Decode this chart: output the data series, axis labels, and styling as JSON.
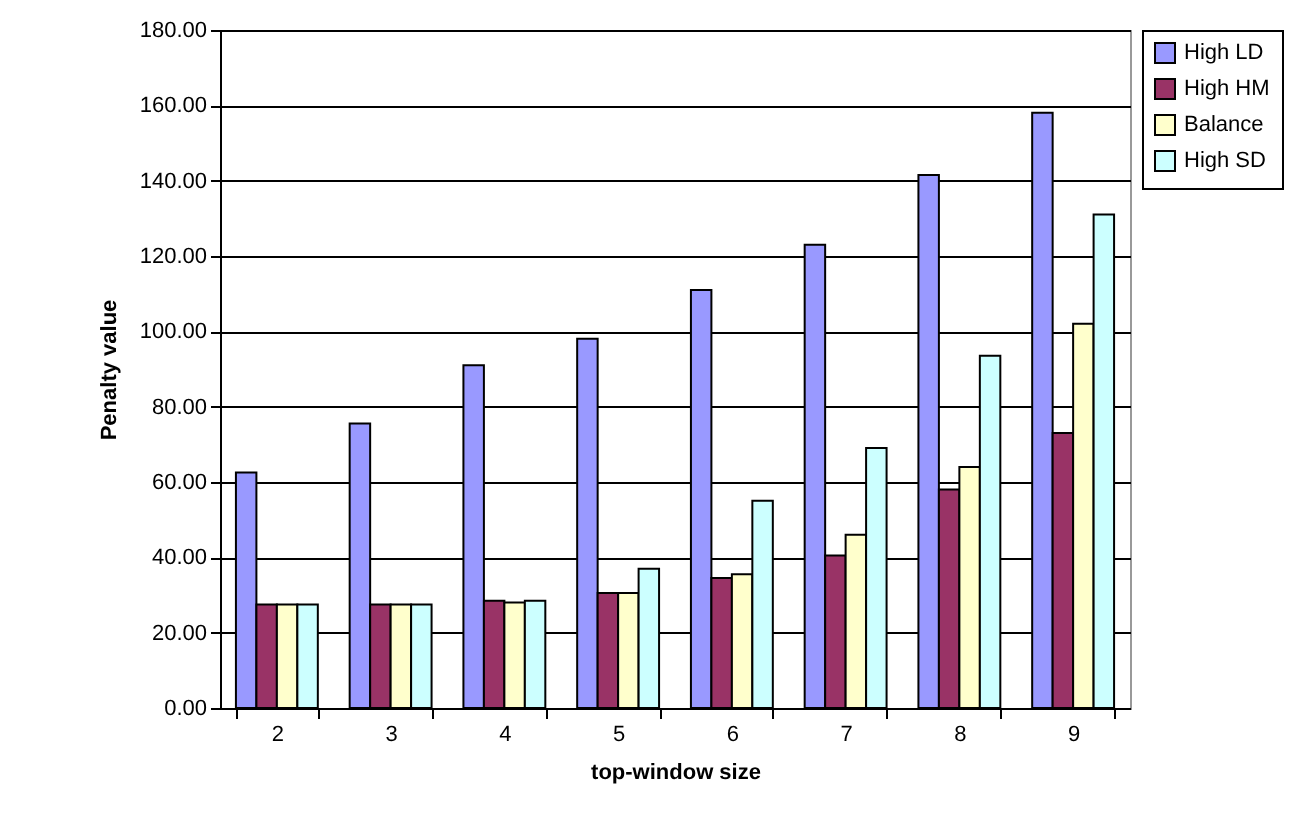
{
  "chart_data": {
    "type": "bar",
    "xlabel": "top-window size",
    "ylabel": "Penalty value",
    "categories": [
      "2",
      "3",
      "4",
      "5",
      "6",
      "7",
      "8",
      "9"
    ],
    "series": [
      {
        "name": "High LD",
        "color": "#9999ff",
        "values": [
          62.5,
          75.5,
          91,
          98,
          111,
          123,
          141.5,
          158
        ]
      },
      {
        "name": "High HM",
        "color": "#993366",
        "values": [
          27.5,
          27.5,
          28.5,
          30.5,
          34.5,
          40.5,
          58,
          73
        ]
      },
      {
        "name": "Balance",
        "color": "#ffffcc",
        "values": [
          27.5,
          27.5,
          28,
          30.5,
          35.5,
          46,
          64,
          102
        ]
      },
      {
        "name": "High SD",
        "color": "#ccffff",
        "values": [
          27.5,
          27.5,
          28.5,
          37,
          55,
          69,
          93.5,
          131
        ]
      }
    ],
    "ylim": [
      0,
      180
    ],
    "yticks": [
      {
        "value": 0,
        "label": "0.00"
      },
      {
        "value": 20,
        "label": "20.00"
      },
      {
        "value": 40,
        "label": "40.00"
      },
      {
        "value": 60,
        "label": "60.00"
      },
      {
        "value": 80,
        "label": "80.00"
      },
      {
        "value": 100,
        "label": "100.00"
      },
      {
        "value": 120,
        "label": "120.00"
      },
      {
        "value": 140,
        "label": "140.00"
      },
      {
        "value": 160,
        "label": "160.00"
      },
      {
        "value": 180,
        "label": "180.00"
      }
    ],
    "grid": "y",
    "legend": "right"
  }
}
